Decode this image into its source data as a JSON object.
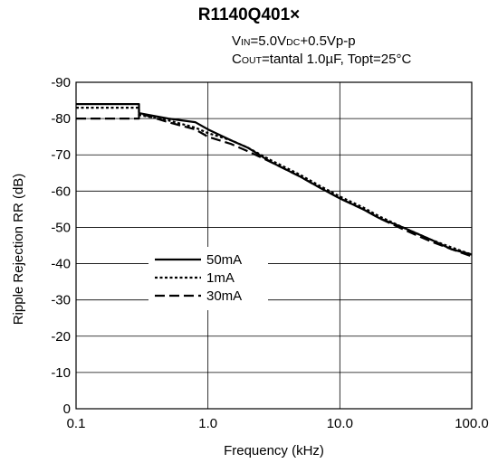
{
  "chart_data": {
    "type": "line",
    "title": "R1140Q401×",
    "conditions": {
      "vin": {
        "pre": "V",
        "sub": "IN",
        "mid": "=5.0V",
        "sub2": "DC",
        "post": "+0.5Vp-p"
      },
      "cout": {
        "pre": "C",
        "sub": "OUT",
        "post": "=tantal 1.0µF, Topt=25°C"
      }
    },
    "xlabel": "Frequency (kHz)",
    "ylabel": "Ripple Rejection RR (dB)",
    "x_scale": "log",
    "xlim": [
      0.1,
      100
    ],
    "ylim": [
      0,
      -90
    ],
    "x_ticks": [
      "0.1",
      "1.0",
      "10.0",
      "100.0"
    ],
    "y_ticks": [
      "0",
      "-10",
      "-20",
      "-30",
      "-40",
      "-50",
      "-60",
      "-70",
      "-80",
      "-90"
    ],
    "grid": true,
    "legend_position": "center-left",
    "series": [
      {
        "name": "50mA",
        "style": "solid",
        "points": [
          [
            0.1,
            -84
          ],
          [
            0.3,
            -84
          ],
          [
            0.3,
            -81.5
          ],
          [
            0.5,
            -80
          ],
          [
            0.8,
            -79
          ],
          [
            1.0,
            -77
          ],
          [
            1.5,
            -74
          ],
          [
            2,
            -72
          ],
          [
            3,
            -68
          ],
          [
            5,
            -64
          ],
          [
            7,
            -61
          ],
          [
            10,
            -58
          ],
          [
            15,
            -55
          ],
          [
            20,
            -52.5
          ],
          [
            30,
            -50
          ],
          [
            50,
            -46.5
          ],
          [
            70,
            -44
          ],
          [
            100,
            -42.5
          ]
        ]
      },
      {
        "name": "1mA",
        "style": "dotted",
        "points": [
          [
            0.1,
            -83
          ],
          [
            0.3,
            -83
          ],
          [
            0.3,
            -81
          ],
          [
            0.5,
            -79.5
          ],
          [
            0.8,
            -77.5
          ],
          [
            1.0,
            -76
          ],
          [
            1.5,
            -74
          ],
          [
            2,
            -72
          ],
          [
            3,
            -68.5
          ],
          [
            5,
            -64.5
          ],
          [
            7,
            -61.5
          ],
          [
            10,
            -58.5
          ],
          [
            15,
            -55.5
          ],
          [
            20,
            -53
          ],
          [
            30,
            -50
          ],
          [
            50,
            -46.5
          ],
          [
            70,
            -44.5
          ],
          [
            100,
            -42.5
          ]
        ]
      },
      {
        "name": "30mA",
        "style": "dashed",
        "points": [
          [
            0.1,
            -80
          ],
          [
            0.3,
            -80
          ],
          [
            0.3,
            -81.5
          ],
          [
            0.5,
            -79
          ],
          [
            0.8,
            -77
          ],
          [
            1.0,
            -75
          ],
          [
            1.5,
            -73
          ],
          [
            2,
            -71
          ],
          [
            3,
            -68
          ],
          [
            5,
            -64
          ],
          [
            7,
            -61
          ],
          [
            10,
            -58
          ],
          [
            15,
            -55
          ],
          [
            20,
            -52.5
          ],
          [
            30,
            -49.5
          ],
          [
            50,
            -46
          ],
          [
            70,
            -44
          ],
          [
            100,
            -42
          ]
        ]
      }
    ]
  }
}
